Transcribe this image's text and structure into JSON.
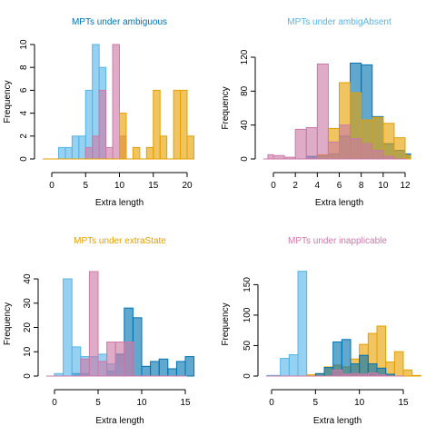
{
  "colors": {
    "skyblue": "#56B4E9",
    "pink": "#CC79A7",
    "orange": "#E69F00",
    "blue": "#0072B2"
  },
  "chart_data": [
    {
      "type": "bar",
      "title": "MPTs under ambiguous",
      "title_color": "#0072B2",
      "xlabel": "Extra length",
      "ylabel": "Frequency",
      "xlim": [
        0,
        20
      ],
      "ylim": [
        0,
        10
      ],
      "xticks": [
        0,
        5,
        10,
        15,
        20
      ],
      "yticks": [
        0,
        2,
        4,
        6,
        8,
        10
      ],
      "series": [
        {
          "color": "#56B4E9",
          "bins": [
            [
              1,
              2,
              1
            ],
            [
              2,
              3,
              1
            ],
            [
              3,
              4,
              2
            ],
            [
              4,
              5,
              2
            ],
            [
              5,
              6,
              6
            ],
            [
              6,
              7,
              10
            ],
            [
              7,
              8,
              8
            ]
          ]
        },
        {
          "color": "#CC79A7",
          "bins": [
            [
              5,
              6,
              1
            ],
            [
              6,
              7,
              2
            ],
            [
              7,
              8,
              6
            ],
            [
              8,
              9,
              1
            ],
            [
              9,
              10,
              10
            ],
            [
              10,
              11,
              2
            ]
          ]
        },
        {
          "color": "#E69F00",
          "bins": [
            [
              10,
              11,
              4
            ],
            [
              12,
              13,
              1
            ],
            [
              14,
              15,
              1
            ],
            [
              15,
              16,
              6
            ],
            [
              16,
              17,
              2
            ],
            [
              18,
              19,
              6
            ],
            [
              19,
              20,
              6
            ],
            [
              20,
              21,
              2
            ]
          ]
        }
      ]
    },
    {
      "type": "bar",
      "title": "MPTs under ambigAbsent",
      "title_color": "#56B4E9",
      "xlabel": "Extra length",
      "ylabel": "Frequency",
      "xlim": [
        0,
        12
      ],
      "ylim": [
        0,
        120
      ],
      "xticks": [
        0,
        2,
        4,
        6,
        8,
        10,
        12
      ],
      "yticks": [
        0,
        40,
        80,
        120
      ],
      "series": [
        {
          "color": "#0072B2",
          "bins": [
            [
              3,
              4,
              3
            ],
            [
              4,
              5,
              4
            ],
            [
              5,
              6,
              6
            ],
            [
              6,
              7,
              27
            ],
            [
              7,
              8,
              113
            ],
            [
              8,
              9,
              111
            ],
            [
              9,
              10,
              50
            ],
            [
              10,
              11,
              18
            ],
            [
              11,
              12,
              10
            ],
            [
              12,
              12.5,
              6
            ]
          ]
        },
        {
          "color": "#E69F00",
          "bins": [
            [
              4,
              5,
              5
            ],
            [
              5,
              6,
              36
            ],
            [
              6,
              7,
              90
            ],
            [
              7,
              8,
              78
            ],
            [
              8,
              9,
              46
            ],
            [
              9,
              10,
              49
            ],
            [
              10,
              11,
              42
            ],
            [
              11,
              12,
              25
            ],
            [
              12,
              12.5,
              4
            ]
          ]
        },
        {
          "color": "#CC79A7",
          "bins": [
            [
              -0.5,
              0,
              5
            ],
            [
              0,
              1,
              4
            ],
            [
              1,
              2,
              2
            ],
            [
              2,
              3,
              35
            ],
            [
              3,
              4,
              37
            ],
            [
              4,
              5,
              112
            ],
            [
              5,
              6,
              20
            ],
            [
              6,
              7,
              40
            ],
            [
              7,
              8,
              24
            ],
            [
              8,
              9,
              18
            ],
            [
              9,
              10,
              10
            ],
            [
              10,
              11,
              3
            ]
          ]
        }
      ]
    },
    {
      "type": "bar",
      "title": "MPTs under extraState",
      "title_color": "#E69F00",
      "xlabel": "Extra length",
      "ylabel": "Frequency",
      "xlim": [
        0,
        15
      ],
      "ylim": [
        0,
        43
      ],
      "xticks": [
        0,
        5,
        10,
        15
      ],
      "yticks": [
        0,
        10,
        20,
        30,
        40
      ],
      "series": [
        {
          "color": "#0072B2",
          "bins": [
            [
              2,
              3,
              1
            ],
            [
              3,
              4,
              1
            ],
            [
              6,
              7,
              2
            ],
            [
              7,
              8,
              9
            ],
            [
              8,
              9,
              28
            ],
            [
              9,
              10,
              24
            ],
            [
              10,
              11,
              4
            ],
            [
              11,
              12,
              6
            ],
            [
              12,
              13,
              7
            ],
            [
              13,
              14,
              3
            ],
            [
              14,
              15,
              6
            ],
            [
              15,
              16,
              8
            ]
          ]
        },
        {
          "color": "#56B4E9",
          "bins": [
            [
              0,
              1,
              1
            ],
            [
              1,
              2,
              40
            ],
            [
              2,
              3,
              12
            ],
            [
              3,
              4,
              8
            ],
            [
              4,
              5,
              8
            ],
            [
              5,
              6,
              9
            ],
            [
              6,
              7,
              5
            ],
            [
              7,
              8,
              4
            ]
          ]
        },
        {
          "color": "#CC79A7",
          "bins": [
            [
              3,
              4,
              7
            ],
            [
              4,
              5,
              43
            ],
            [
              5,
              6,
              6
            ],
            [
              6,
              7,
              14
            ],
            [
              7,
              8,
              14
            ],
            [
              8,
              9,
              14
            ]
          ]
        }
      ]
    },
    {
      "type": "bar",
      "title": "MPTs under inapplicable",
      "title_color": "#CC79A7",
      "xlabel": "Extra length",
      "ylabel": "Frequency",
      "xlim": [
        0,
        15
      ],
      "ylim": [
        0,
        170
      ],
      "xticks": [
        0,
        5,
        10,
        15
      ],
      "yticks": [
        0,
        50,
        100,
        150
      ],
      "series": [
        {
          "color": "#56B4E9",
          "bins": [
            [
              -0.5,
              0,
              1
            ],
            [
              0,
              1,
              1
            ],
            [
              1,
              2,
              29
            ],
            [
              2,
              3,
              35
            ],
            [
              3,
              4,
              172
            ]
          ]
        },
        {
          "color": "#E69F00",
          "bins": [
            [
              4,
              5,
              2
            ],
            [
              5,
              6,
              4
            ],
            [
              6,
              7,
              15
            ],
            [
              7,
              8,
              18
            ],
            [
              8,
              9,
              15
            ],
            [
              9,
              10,
              28
            ],
            [
              10,
              11,
              52
            ],
            [
              11,
              12,
              70
            ],
            [
              12,
              13,
              82
            ],
            [
              13,
              14,
              23
            ],
            [
              14,
              15,
              40
            ],
            [
              15,
              16,
              10
            ],
            [
              16,
              17,
              1
            ]
          ]
        },
        {
          "color": "#0072B2",
          "bins": [
            [
              5,
              6,
              4
            ],
            [
              6,
              7,
              14
            ],
            [
              7,
              8,
              56
            ],
            [
              8,
              9,
              60
            ],
            [
              9,
              10,
              20
            ],
            [
              10,
              11,
              34
            ],
            [
              11,
              12,
              20
            ],
            [
              12,
              13,
              13
            ],
            [
              13,
              14,
              3
            ]
          ]
        },
        {
          "color": "#CC79A7",
          "bins": [
            [
              7,
              8,
              10
            ],
            [
              8,
              9,
              3
            ],
            [
              9,
              10,
              4
            ],
            [
              10,
              11,
              3
            ],
            [
              11,
              12,
              5
            ],
            [
              12,
              13,
              2
            ]
          ]
        }
      ]
    }
  ]
}
